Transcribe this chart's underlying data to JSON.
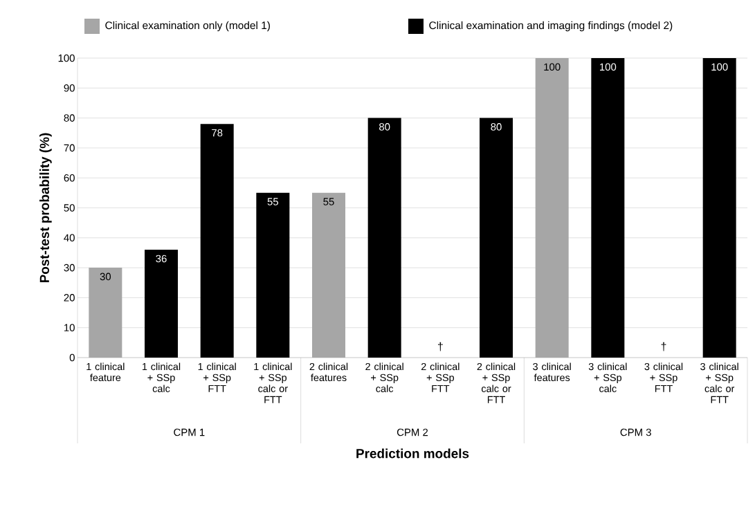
{
  "chart_data": {
    "type": "bar",
    "xlabel": "Prediction models",
    "ylabel": "Post-test probability (%)",
    "categories": [
      "1 clinical feature",
      "1 clinical + SSp calc",
      "1 clinical + SSp FTT",
      "1 clinical + SSp calc or FTT",
      "2 clinical features",
      "2 clinical + SSp calc",
      "2 clinical + SSp FTT",
      "2 clinical + SSp calc or FTT",
      "3 clinical features",
      "3 clinical + SSp calc",
      "3 clinical + SSp FTT",
      "3 clinical + SSp calc or FTT"
    ],
    "series": [
      {
        "name": "Clinical examination only (model 1)",
        "color": "#a6a6a6",
        "values": [
          30,
          null,
          null,
          null,
          55,
          null,
          null,
          null,
          100,
          null,
          null,
          null
        ],
        "value_labels": [
          "30",
          null,
          null,
          null,
          "55",
          null,
          null,
          null,
          "100",
          null,
          null,
          null
        ]
      },
      {
        "name": "Clinical examination and imaging findings (model 2)",
        "color": "#000000",
        "values": [
          null,
          36,
          78,
          55,
          null,
          80,
          null,
          80,
          null,
          100,
          null,
          100
        ],
        "value_labels": [
          null,
          "36",
          "78",
          "55",
          null,
          "80",
          "†",
          "80",
          null,
          "100",
          "†",
          "100"
        ]
      }
    ],
    "annotations": [
      "CPM 1",
      "CPM 2",
      "CPM 3"
    ],
    "ylim": [
      0,
      100
    ],
    "yticks": [
      0,
      10,
      20,
      30,
      40,
      50,
      60,
      70,
      80,
      90,
      100
    ],
    "grid": "y",
    "legend": "top"
  }
}
